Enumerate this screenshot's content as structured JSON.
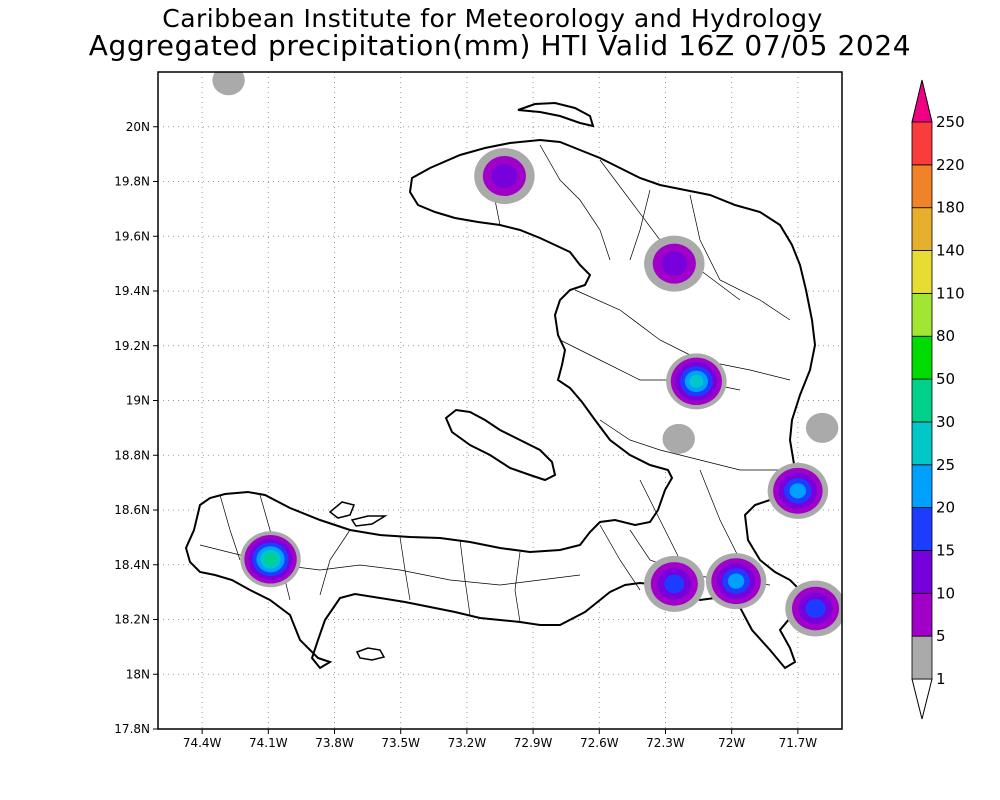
{
  "title": {
    "line1": "Caribbean Institute for Meteorology and Hydrology",
    "line2": "Aggregated precipitation(mm) HTI Valid 16Z 07/05 2024"
  },
  "map": {
    "region": "Haiti",
    "lon_range": [
      -74.6,
      -71.5
    ],
    "lat_range": [
      17.8,
      20.2
    ],
    "grid": "dotted",
    "x_ticks": [
      {
        "lon": -74.4,
        "label": "74.4W"
      },
      {
        "lon": -74.1,
        "label": "74.1W"
      },
      {
        "lon": -73.8,
        "label": "73.8W"
      },
      {
        "lon": -73.5,
        "label": "73.5W"
      },
      {
        "lon": -73.2,
        "label": "73.2W"
      },
      {
        "lon": -72.9,
        "label": "72.9W"
      },
      {
        "lon": -72.6,
        "label": "72.6W"
      },
      {
        "lon": -72.3,
        "label": "72.3W"
      },
      {
        "lon": -72.0,
        "label": "72W"
      },
      {
        "lon": -71.7,
        "label": "71.7W"
      }
    ],
    "y_ticks": [
      {
        "lat": 20.0,
        "label": "20N"
      },
      {
        "lat": 19.8,
        "label": "19.8N"
      },
      {
        "lat": 19.6,
        "label": "19.6N"
      },
      {
        "lat": 19.4,
        "label": "19.4N"
      },
      {
        "lat": 19.2,
        "label": "19.2N"
      },
      {
        "lat": 19.0,
        "label": "19N"
      },
      {
        "lat": 18.8,
        "label": "18.8N"
      },
      {
        "lat": 18.6,
        "label": "18.6N"
      },
      {
        "lat": 18.4,
        "label": "18.4N"
      },
      {
        "lat": 18.2,
        "label": "18.2N"
      },
      {
        "lat": 18.0,
        "label": "18N"
      },
      {
        "lat": 17.8,
        "label": "17.8N"
      }
    ],
    "precip_cells": [
      {
        "lon": -74.28,
        "lat": 20.17,
        "max": 1
      },
      {
        "lon": -73.03,
        "lat": 19.82,
        "max": 10
      },
      {
        "lon": -72.26,
        "lat": 19.5,
        "max": 10
      },
      {
        "lon": -72.16,
        "lat": 19.07,
        "max": 25
      },
      {
        "lon": -74.09,
        "lat": 18.42,
        "max": 30
      },
      {
        "lon": -71.7,
        "lat": 18.67,
        "max": 20
      },
      {
        "lon": -72.26,
        "lat": 18.33,
        "max": 15
      },
      {
        "lon": -71.98,
        "lat": 18.34,
        "max": 20
      },
      {
        "lon": -71.62,
        "lat": 18.24,
        "max": 15
      },
      {
        "lon": -72.24,
        "lat": 18.86,
        "max": 1
      },
      {
        "lon": -71.59,
        "lat": 18.9,
        "max": 1
      }
    ]
  },
  "legend": {
    "unit": "mm",
    "levels": [
      {
        "label": "1",
        "color": "#aaaaaa"
      },
      {
        "label": "5",
        "color": "#a000c8"
      },
      {
        "label": "10",
        "color": "#7800dc"
      },
      {
        "label": "15",
        "color": "#1e3cff"
      },
      {
        "label": "20",
        "color": "#00a0ff"
      },
      {
        "label": "25",
        "color": "#00c8c8"
      },
      {
        "label": "30",
        "color": "#00d28c"
      },
      {
        "label": "50",
        "color": "#00dc00"
      },
      {
        "label": "80",
        "color": "#a0e632"
      },
      {
        "label": "110",
        "color": "#e6dc32"
      },
      {
        "label": "140",
        "color": "#e6af2d"
      },
      {
        "label": "180",
        "color": "#f08228"
      },
      {
        "label": "220",
        "color": "#fa3c3c"
      },
      {
        "label": "250",
        "color": "#f00082"
      }
    ],
    "below_color": "#ffffff",
    "above_color": "#f00082"
  }
}
